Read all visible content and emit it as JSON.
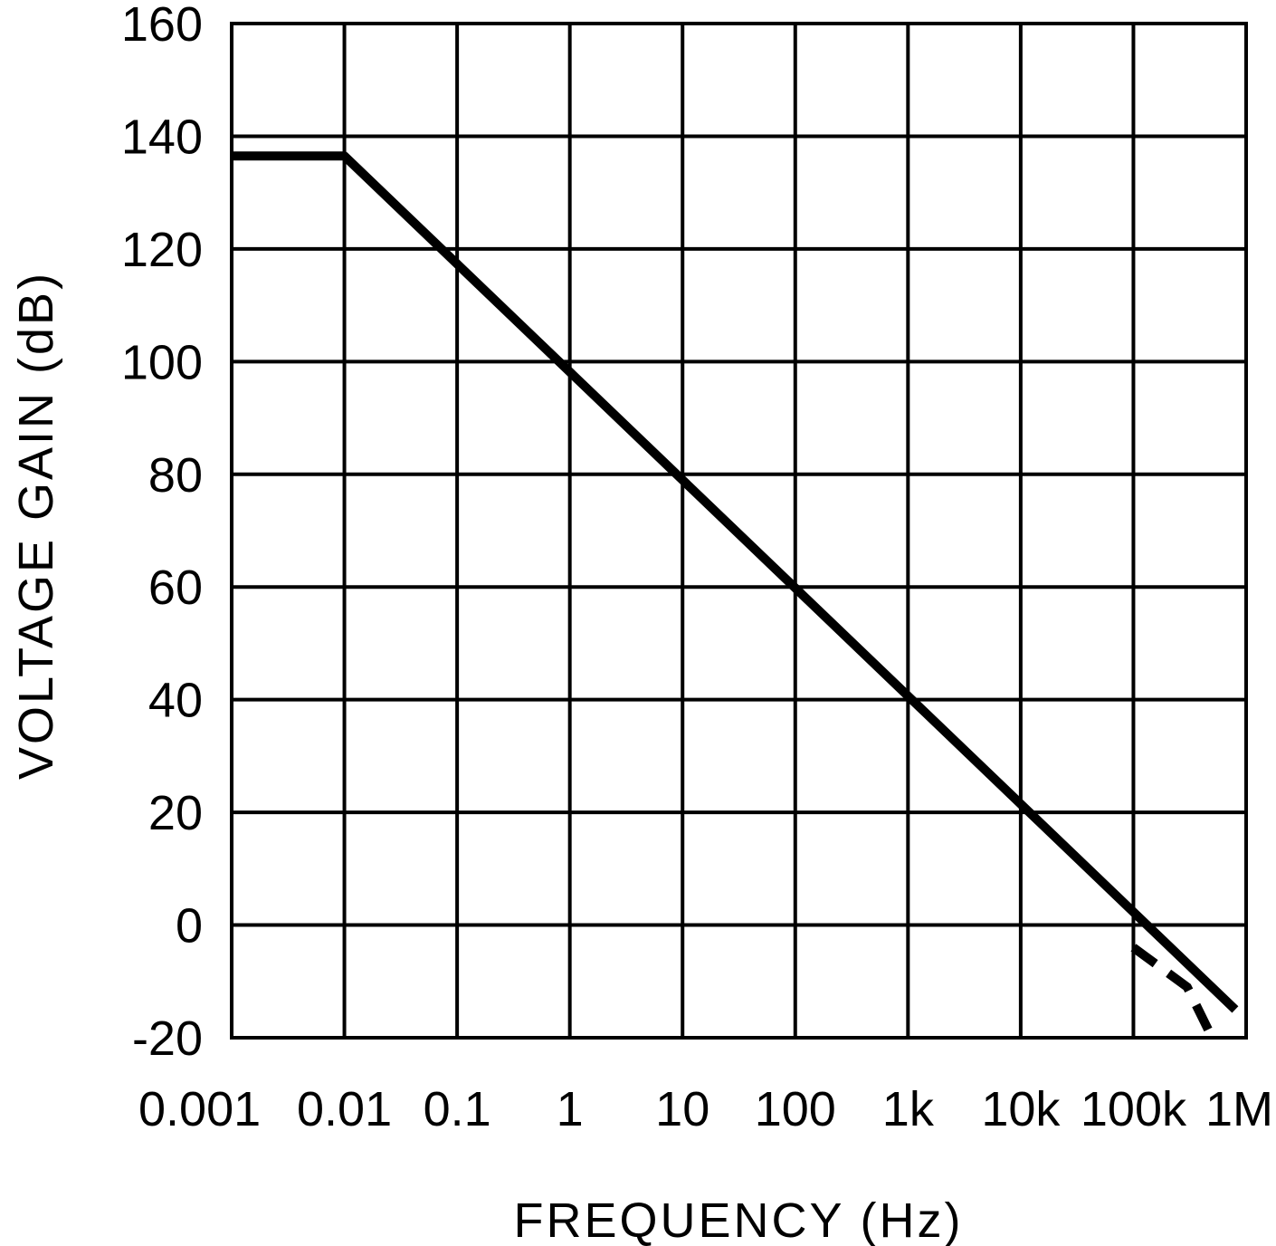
{
  "chart_data": {
    "type": "line",
    "title": "",
    "xlabel": "FREQUENCY (Hz)",
    "ylabel": "VOLTAGE GAIN (dB)",
    "x_scale": "log",
    "xlim": [
      0.001,
      1000000
    ],
    "ylim": [
      -20,
      160
    ],
    "grid": true,
    "x_tick_values": [
      0.001,
      0.01,
      0.1,
      1,
      10,
      100,
      1000,
      10000,
      100000,
      1000000
    ],
    "x_tick_labels": [
      "0.001",
      "0.01",
      "0.1",
      "1",
      "10",
      "100",
      "1k",
      "10k",
      "100k",
      "1M"
    ],
    "y_tick_values": [
      160,
      140,
      120,
      100,
      80,
      60,
      40,
      20,
      0,
      -20
    ],
    "y_tick_labels": [
      "160",
      "140",
      "120",
      "100",
      "80",
      "60",
      "40",
      "20",
      "0",
      "-20"
    ],
    "series": [
      {
        "style": "solid",
        "color": "#000000",
        "points": [
          [
            0.001,
            136.5
          ],
          [
            0.01,
            136.5
          ],
          [
            800000,
            -15
          ]
        ]
      }
    ],
    "series_extension": {
      "style": "dashed",
      "color": "#000000",
      "points": [
        [
          100000,
          -4
        ],
        [
          300000,
          -11
        ],
        [
          500000,
          -20
        ]
      ]
    }
  }
}
